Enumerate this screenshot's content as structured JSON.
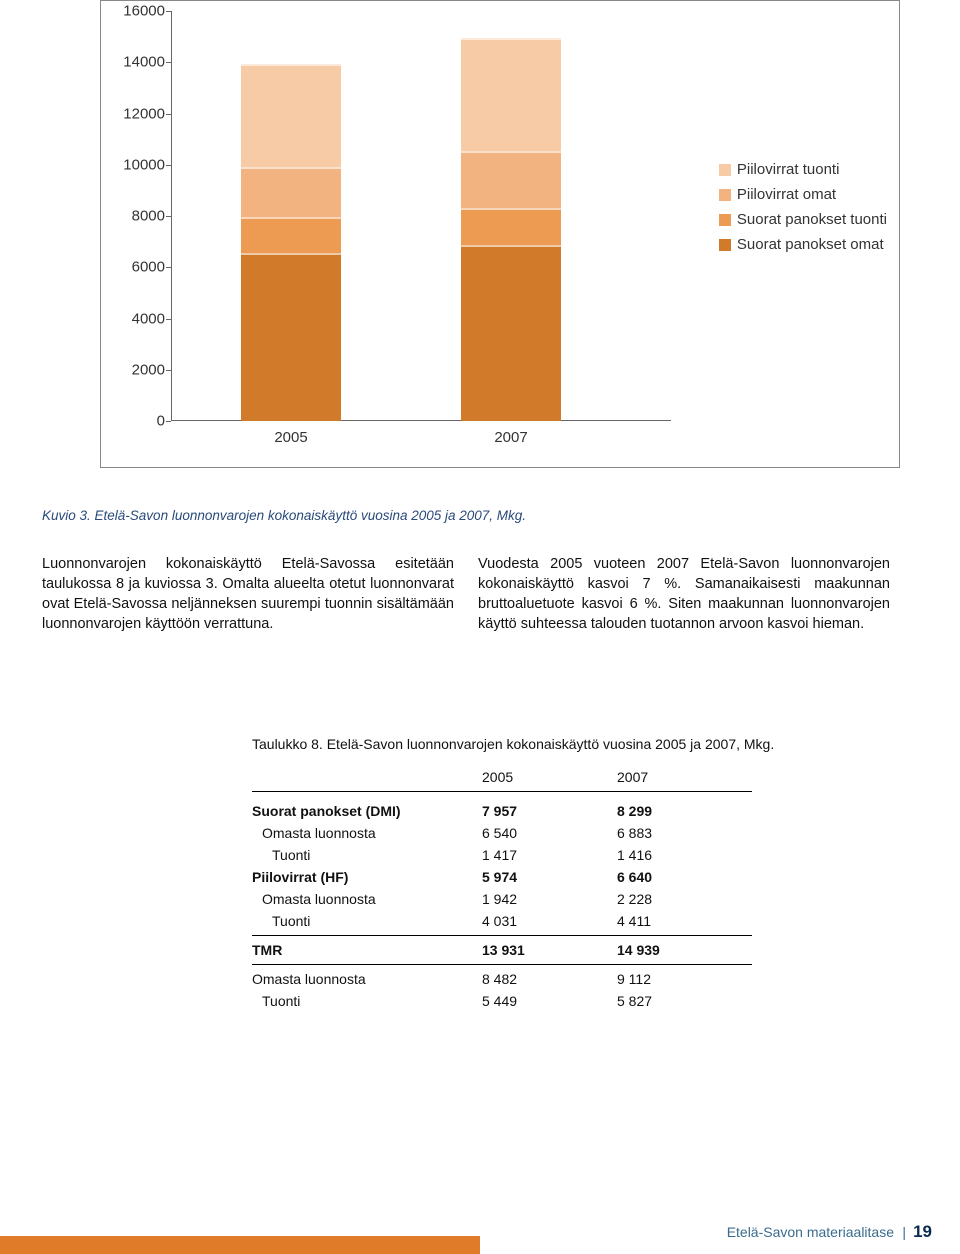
{
  "chart": {
    "type": "stacked-bar",
    "ylim": [
      0,
      16000
    ],
    "ytick_step": 2000,
    "yticks": [
      0,
      2000,
      4000,
      6000,
      8000,
      10000,
      12000,
      14000,
      16000
    ],
    "categories": [
      "2005",
      "2007"
    ],
    "series": [
      {
        "name": "Suorat panokset omat",
        "color": "#d17a2a",
        "values": [
          6540,
          6883
        ]
      },
      {
        "name": "Suorat panokset tuonti",
        "color": "#ed9a52",
        "values": [
          1417,
          1416
        ]
      },
      {
        "name": "Piilovirrat omat",
        "color": "#f2b380",
        "values": [
          1942,
          2228
        ]
      },
      {
        "name": "Piilovirrat tuonti",
        "color": "#f6cba6",
        "values": [
          4031,
          4411
        ]
      }
    ],
    "legend_order": [
      "Piilovirrat tuonti",
      "Piilovirrat omat",
      "Suorat panokset tuonti",
      "Suorat panokset omat"
    ],
    "border_color": "#888888",
    "axis_color": "#666666",
    "background_color": "#ffffff",
    "tick_fontsize": 15
  },
  "caption": "Kuvio 3. Etelä-Savon luonnonvarojen kokonaiskäyttö vuosina 2005 ja 2007, Mkg.",
  "body": {
    "left": "Luonnonvarojen kokonaiskäyttö Etelä-Savossa esitetään taulukossa 8 ja kuviossa 3. Omalta alueelta otetut luonnonvarat ovat Etelä-Savossa neljänneksen suurempi tuonnin sisältämään luonnonvarojen käyttöön verrattuna.",
    "right": "Vuodesta 2005 vuoteen 2007 Etelä-Savon luonnonvarojen kokonaiskäyttö kasvoi 7 %. Samanaikaisesti maakunnan bruttoaluetuote kasvoi 6 %. Siten maakunnan luonnonvarojen käyttö suhteessa talouden tuotannon arvoon kasvoi hieman."
  },
  "table": {
    "caption": "Taulukko 8. Etelä-Savon luonnonvarojen kokonaiskäyttö vuosina 2005 ja 2007, Mkg.",
    "headers": [
      "",
      "2005",
      "2007"
    ],
    "sections": [
      {
        "rows": [
          {
            "label": "Suorat panokset (DMI)",
            "bold": true,
            "indent": 0,
            "v2005": "7 957",
            "v2007": "8 299"
          },
          {
            "label": "Omasta luonnosta",
            "bold": false,
            "indent": 1,
            "v2005": "6 540",
            "v2007": "6 883"
          },
          {
            "label": "Tuonti",
            "bold": false,
            "indent": 2,
            "v2005": "1 417",
            "v2007": "1 416"
          },
          {
            "label": "Piilovirrat (HF)",
            "bold": true,
            "indent": 0,
            "v2005": "5 974",
            "v2007": "6 640"
          },
          {
            "label": "Omasta luonnosta",
            "bold": false,
            "indent": 1,
            "v2005": "1 942",
            "v2007": "2 228"
          },
          {
            "label": "Tuonti",
            "bold": false,
            "indent": 2,
            "v2005": "4 031",
            "v2007": "4 411"
          }
        ]
      },
      {
        "rows": [
          {
            "label": "TMR",
            "bold": true,
            "indent": 0,
            "v2005": "13 931",
            "v2007": "14 939"
          }
        ]
      },
      {
        "rows": [
          {
            "label": "Omasta luonnosta",
            "bold": false,
            "indent": 0,
            "v2005": "8 482",
            "v2007": "9 112"
          },
          {
            "label": "Tuonti",
            "bold": false,
            "indent": 1,
            "v2005": "5 449",
            "v2007": "5 827"
          }
        ]
      }
    ]
  },
  "footer": {
    "text": "Etelä-Savon materiaalitase",
    "sep": "|",
    "page": "19",
    "stripe_color": "#e07b2a"
  }
}
